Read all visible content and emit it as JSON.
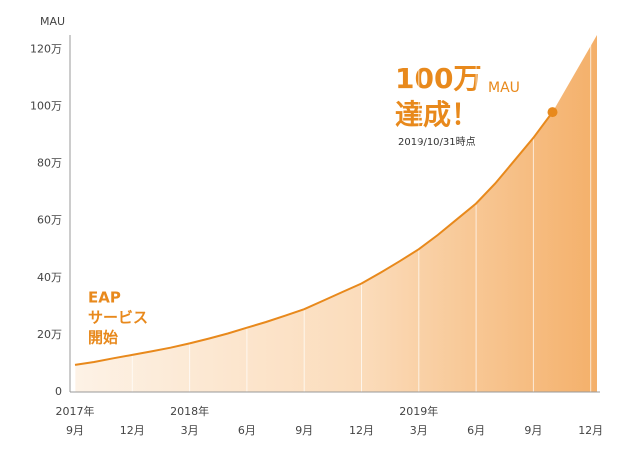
{
  "chart_data": {
    "type": "area-line",
    "y_label": "MAU",
    "x": [
      "2017-09",
      "2017-10",
      "2017-11",
      "2017-12",
      "2018-01",
      "2018-02",
      "2018-03",
      "2018-04",
      "2018-05",
      "2018-06",
      "2018-07",
      "2018-08",
      "2018-09",
      "2018-10",
      "2018-11",
      "2018-12",
      "2019-01",
      "2019-02",
      "2019-03",
      "2019-04",
      "2019-05",
      "2019-06",
      "2019-07",
      "2019-08",
      "2019-09",
      "2019-10"
    ],
    "values": [
      9.5,
      10.5,
      11.8,
      13,
      14.2,
      15.5,
      17,
      18.7,
      20.5,
      22.5,
      24.5,
      26.7,
      29,
      32,
      35,
      38,
      41.8,
      45.8,
      50,
      55,
      60.5,
      66,
      73,
      81,
      89,
      98
    ],
    "color": "#e8891c",
    "ylim": [
      0,
      125
    ],
    "yticks": [
      0,
      {
        "value": 20,
        "label": "20万"
      },
      {
        "value": 40,
        "label": "40万"
      },
      {
        "value": 60,
        "label": "60万"
      },
      {
        "value": 80,
        "label": "80万"
      },
      {
        "value": 100,
        "label": "100万"
      },
      {
        "value": 120,
        "label": "120万"
      }
    ],
    "xticks": [
      {
        "value": "2017-09",
        "label": "9月"
      },
      {
        "value": "2017-12",
        "label": "12月"
      },
      {
        "value": "2018-03",
        "label": "3月"
      },
      {
        "value": "2018-06",
        "label": "6月"
      },
      {
        "value": "2018-09",
        "label": "9月"
      },
      {
        "value": "2018-12",
        "label": "12月"
      },
      {
        "value": "2019-03",
        "label": "3月"
      },
      {
        "value": "2019-06",
        "label": "6月"
      },
      {
        "value": "2019-09",
        "label": "9月"
      },
      {
        "value": "2019-12",
        "label": "12月"
      }
    ],
    "year_labels": [
      {
        "value": "2017-09",
        "label": "2017年"
      },
      {
        "value": "2018-03",
        "label": "2018年"
      },
      {
        "value": "2019-03",
        "label": "2019年"
      }
    ],
    "milestone": {
      "number": "100万",
      "unit": "MAU",
      "text": "達成！",
      "date": "2019/10/31時点"
    },
    "start_note": [
      "EAP",
      "サービス",
      "開始"
    ]
  }
}
